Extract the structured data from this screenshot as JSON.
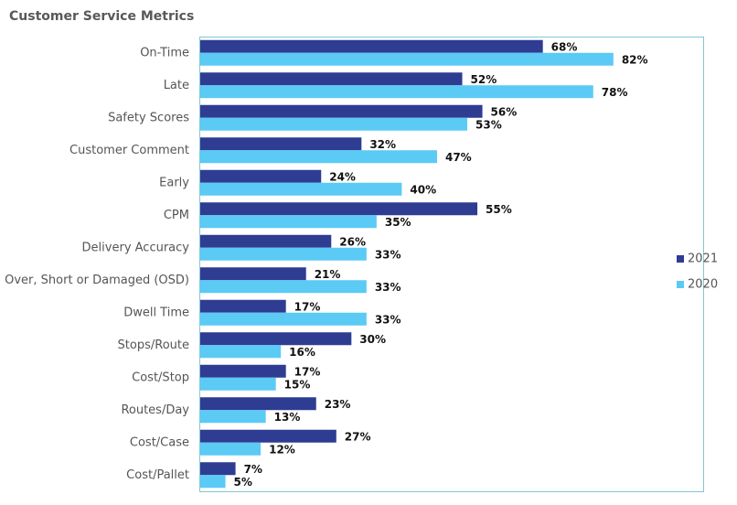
{
  "chart_data": {
    "type": "hbar",
    "title": "Customer Service Metrics",
    "categories": [
      "On-Time",
      "Late",
      "Safety Scores",
      "Customer Comment",
      "Early",
      "CPM",
      "Delivery Accuracy",
      "Over, Short or Damaged (OSD)",
      "Dwell Time",
      "Stops/Route",
      "Cost/Stop",
      "Routes/Day",
      "Cost/Case",
      "Cost/Pallet"
    ],
    "series": [
      {
        "name": "2021",
        "color": "#2e3c92",
        "values": [
          68,
          52,
          56,
          32,
          24,
          55,
          26,
          21,
          17,
          30,
          17,
          23,
          27,
          7
        ],
        "value_labels": [
          "68%",
          "52%",
          "56%",
          "32%",
          "24%",
          "55%",
          "26%",
          "21%",
          "17%",
          "30%",
          "17%",
          "23%",
          "27%",
          "7%"
        ]
      },
      {
        "name": "2020",
        "color": "#5bcaf5",
        "values": [
          82,
          78,
          53,
          47,
          40,
          35,
          33,
          33,
          33,
          16,
          15,
          13,
          12,
          5
        ],
        "value_labels": [
          "82%",
          "78%",
          "53%",
          "47%",
          "40%",
          "35%",
          "33%",
          "33%",
          "33%",
          "16%",
          "15%",
          "13%",
          "12%",
          "5%"
        ]
      }
    ],
    "xlim": [
      0,
      100
    ],
    "legend": "right"
  }
}
